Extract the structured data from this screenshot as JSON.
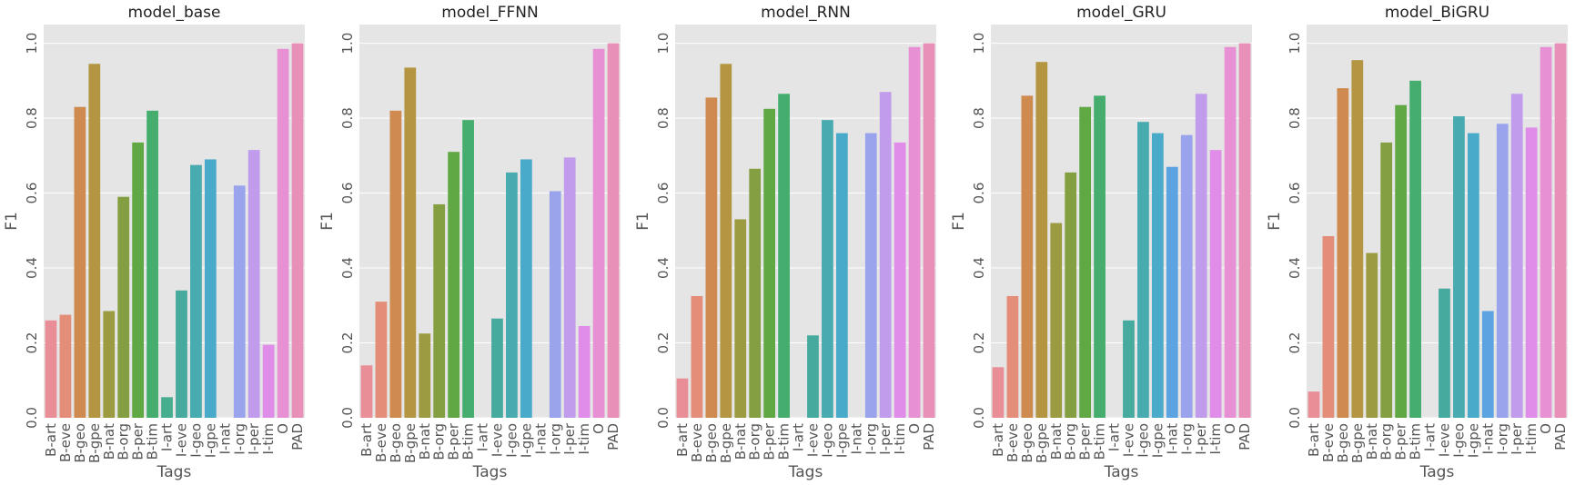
{
  "chart_data": [
    {
      "type": "bar",
      "title": "model_base",
      "xlabel": "Tags",
      "ylabel": "F1",
      "ylim": [
        0,
        1.05
      ],
      "yticks": [
        "0.0",
        "0.2",
        "0.4",
        "0.6",
        "0.8",
        "1.0"
      ],
      "categories": [
        "B-art",
        "B-eve",
        "B-geo",
        "B-gpe",
        "B-nat",
        "B-org",
        "B-per",
        "B-tim",
        "I-art",
        "I-eve",
        "I-geo",
        "I-gpe",
        "I-nat",
        "I-org",
        "I-per",
        "I-tim",
        "O",
        "PAD"
      ],
      "values": [
        0.26,
        0.275,
        0.83,
        0.945,
        0.285,
        0.59,
        0.735,
        0.82,
        0.055,
        0.34,
        0.675,
        0.69,
        0.0,
        0.62,
        0.715,
        0.195,
        0.985,
        1.0
      ],
      "grid": true
    },
    {
      "type": "bar",
      "title": "model_FFNN",
      "xlabel": "Tags",
      "ylabel": "F1",
      "ylim": [
        0,
        1.05
      ],
      "yticks": [
        "0.0",
        "0.2",
        "0.4",
        "0.6",
        "0.8",
        "1.0"
      ],
      "categories": [
        "B-art",
        "B-eve",
        "B-geo",
        "B-gpe",
        "B-nat",
        "B-org",
        "B-per",
        "B-tim",
        "I-art",
        "I-eve",
        "I-geo",
        "I-gpe",
        "I-nat",
        "I-org",
        "I-per",
        "I-tim",
        "O",
        "PAD"
      ],
      "values": [
        0.14,
        0.31,
        0.82,
        0.935,
        0.225,
        0.57,
        0.71,
        0.795,
        0.0,
        0.265,
        0.655,
        0.69,
        0.0,
        0.605,
        0.695,
        0.245,
        0.985,
        1.0
      ],
      "grid": true
    },
    {
      "type": "bar",
      "title": "model_RNN",
      "xlabel": "Tags",
      "ylabel": "F1",
      "ylim": [
        0,
        1.05
      ],
      "yticks": [
        "0.0",
        "0.2",
        "0.4",
        "0.6",
        "0.8",
        "1.0"
      ],
      "categories": [
        "B-art",
        "B-eve",
        "B-geo",
        "B-gpe",
        "B-nat",
        "B-org",
        "B-per",
        "B-tim",
        "I-art",
        "I-eve",
        "I-geo",
        "I-gpe",
        "I-nat",
        "I-org",
        "I-per",
        "I-tim",
        "O",
        "PAD"
      ],
      "values": [
        0.105,
        0.325,
        0.855,
        0.945,
        0.53,
        0.665,
        0.825,
        0.865,
        0.0,
        0.22,
        0.795,
        0.76,
        0.0,
        0.76,
        0.87,
        0.735,
        0.99,
        1.0
      ],
      "grid": true
    },
    {
      "type": "bar",
      "title": "model_GRU",
      "xlabel": "Tags",
      "ylabel": "F1",
      "ylim": [
        0,
        1.05
      ],
      "yticks": [
        "0.0",
        "0.2",
        "0.4",
        "0.6",
        "0.8",
        "1.0"
      ],
      "categories": [
        "B-art",
        "B-eve",
        "B-geo",
        "B-gpe",
        "B-nat",
        "B-org",
        "B-per",
        "B-tim",
        "I-art",
        "I-eve",
        "I-geo",
        "I-gpe",
        "I-nat",
        "I-org",
        "I-per",
        "I-tim",
        "O",
        "PAD"
      ],
      "values": [
        0.135,
        0.325,
        0.86,
        0.95,
        0.52,
        0.655,
        0.83,
        0.86,
        0.0,
        0.26,
        0.79,
        0.76,
        0.67,
        0.755,
        0.865,
        0.715,
        0.99,
        1.0
      ],
      "grid": true
    },
    {
      "type": "bar",
      "title": "model_BiGRU",
      "xlabel": "Tags",
      "ylabel": "F1",
      "ylim": [
        0,
        1.05
      ],
      "yticks": [
        "0.0",
        "0.2",
        "0.4",
        "0.6",
        "0.8",
        "1.0"
      ],
      "categories": [
        "B-art",
        "B-eve",
        "B-geo",
        "B-gpe",
        "B-nat",
        "B-org",
        "B-per",
        "B-tim",
        "I-art",
        "I-eve",
        "I-geo",
        "I-gpe",
        "I-nat",
        "I-org",
        "I-per",
        "I-tim",
        "O",
        "PAD"
      ],
      "values": [
        0.07,
        0.485,
        0.88,
        0.955,
        0.44,
        0.735,
        0.835,
        0.9,
        0.0,
        0.345,
        0.805,
        0.76,
        0.285,
        0.785,
        0.865,
        0.775,
        0.99,
        1.0
      ],
      "grid": true
    }
  ],
  "colors": {
    "plot_background": "#e5e5e5",
    "grid": "#ffffff",
    "bars": [
      "#e98e96",
      "#e48d78",
      "#ce8a4f",
      "#b49642",
      "#9d9b42",
      "#839f41",
      "#5fa843",
      "#45ae6e",
      "#46ad8e",
      "#47aa9f",
      "#48abb0",
      "#4aaac9",
      "#5ca3e2",
      "#9aa4ec",
      "#c19bec",
      "#df8de9",
      "#e890d4",
      "#e890b8"
    ]
  }
}
